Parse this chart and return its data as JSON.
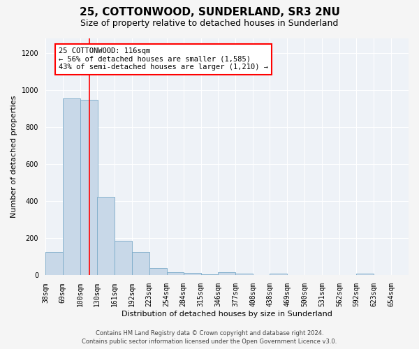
{
  "title": "25, COTTONWOOD, SUNDERLAND, SR3 2NU",
  "subtitle": "Size of property relative to detached houses in Sunderland",
  "xlabel": "Distribution of detached houses by size in Sunderland",
  "ylabel": "Number of detached properties",
  "footer_line1": "Contains HM Land Registry data © Crown copyright and database right 2024.",
  "footer_line2": "Contains public sector information licensed under the Open Government Licence v3.0.",
  "annotation_line1": "25 COTTONWOOD: 116sqm",
  "annotation_line2": "← 56% of detached houses are smaller (1,585)",
  "annotation_line3": "43% of semi-detached houses are larger (1,210) →",
  "bar_color": "#c8d8e8",
  "bar_edge_color": "#7aaac8",
  "redline_x": 116,
  "categories": [
    "38sqm",
    "69sqm",
    "100sqm",
    "130sqm",
    "161sqm",
    "192sqm",
    "223sqm",
    "254sqm",
    "284sqm",
    "315sqm",
    "346sqm",
    "377sqm",
    "408sqm",
    "438sqm",
    "469sqm",
    "500sqm",
    "531sqm",
    "562sqm",
    "592sqm",
    "623sqm",
    "654sqm"
  ],
  "bin_edges": [
    38,
    69,
    100,
    130,
    161,
    192,
    223,
    254,
    284,
    315,
    346,
    377,
    408,
    438,
    469,
    500,
    531,
    562,
    592,
    623,
    654
  ],
  "bin_width": 31,
  "bar_heights": [
    125,
    955,
    950,
    425,
    185,
    125,
    40,
    18,
    14,
    5,
    16,
    10,
    0,
    8,
    0,
    0,
    0,
    0,
    8,
    0,
    0
  ],
  "ylim": [
    0,
    1280
  ],
  "yticks": [
    0,
    200,
    400,
    600,
    800,
    1000,
    1200
  ],
  "background_color": "#eef2f7",
  "grid_color": "#ffffff",
  "fig_bg_color": "#f5f5f5",
  "title_fontsize": 11,
  "subtitle_fontsize": 9,
  "axis_label_fontsize": 8,
  "tick_fontsize": 7,
  "footer_fontsize": 6,
  "annotation_fontsize": 7.5
}
